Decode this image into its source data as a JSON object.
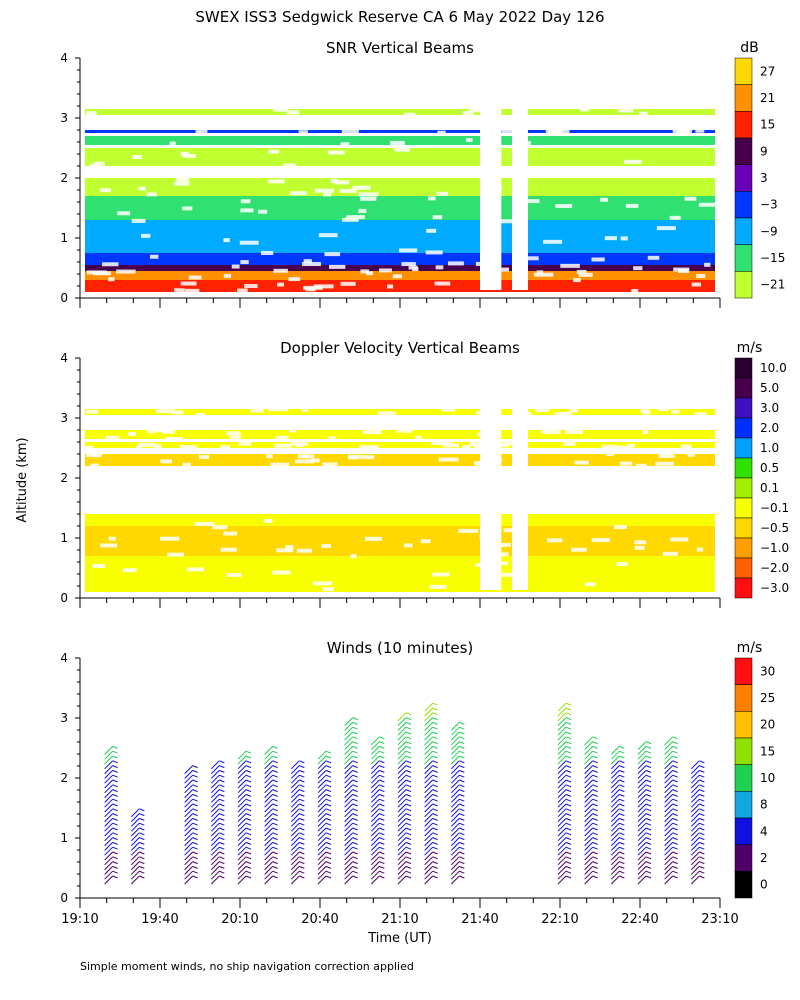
{
  "figure": {
    "title": "SWEX ISS3 Sedgwick Reserve CA   6 May 2022 Day 126",
    "ylabel": "Altitude (km)",
    "xlabel": "Time (UT)",
    "footnote": "Simple moment winds, no ship navigation correction applied",
    "x_ticks": [
      "19:10",
      "19:40",
      "20:10",
      "20:40",
      "21:10",
      "21:40",
      "22:10",
      "22:40",
      "23:10"
    ]
  },
  "chart_data": [
    {
      "type": "heatmap",
      "title": "SNR Vertical Beams",
      "colorbar_unit": "dB",
      "colorbar_labels": [
        "27",
        "21",
        "15",
        "9",
        "3",
        "−3",
        "−9",
        "−15",
        "−21"
      ],
      "colorbar_colors": [
        "#ffd800",
        "#ff9000",
        "#ff2200",
        "#48004c",
        "#6a00b8",
        "#0038ff",
        "#00aaff",
        "#30e070",
        "#c0ff30"
      ],
      "y_ticks": [
        "0",
        "1",
        "2",
        "3",
        "4"
      ],
      "ylim": [
        0,
        4
      ],
      "xlim": [
        "19:10",
        "23:10"
      ],
      "data_gaps": [
        [
          "21:40",
          "21:48"
        ],
        [
          "21:52",
          "21:58"
        ]
      ],
      "layers": [
        {
          "y0": 0.1,
          "y1": 0.3,
          "color": "#ff2200"
        },
        {
          "y0": 0.3,
          "y1": 0.45,
          "color": "#ff9000"
        },
        {
          "y0": 0.45,
          "y1": 0.55,
          "color": "#48004c"
        },
        {
          "y0": 0.55,
          "y1": 0.75,
          "color": "#0038ff"
        },
        {
          "y0": 0.75,
          "y1": 1.3,
          "color": "#00aaff"
        },
        {
          "y0": 1.3,
          "y1": 1.7,
          "color": "#30e070"
        },
        {
          "y0": 1.7,
          "y1": 2.0,
          "color": "#c0ff30"
        },
        {
          "y0": 2.2,
          "y1": 2.5,
          "color": "#c0ff30"
        },
        {
          "y0": 2.55,
          "y1": 2.7,
          "color": "#30e070"
        },
        {
          "y0": 2.75,
          "y1": 2.8,
          "color": "#0038ff"
        },
        {
          "y0": 3.05,
          "y1": 3.15,
          "color": "#c0ff30"
        }
      ]
    },
    {
      "type": "heatmap",
      "title": "Doppler Velocity Vertical Beams",
      "colorbar_unit": "m/s",
      "colorbar_labels": [
        "10.0",
        "5.0",
        "3.0",
        "2.0",
        "1.0",
        "0.5",
        "0.1",
        "−0.1",
        "−0.5",
        "−1.0",
        "−2.0",
        "−3.0"
      ],
      "colorbar_colors": [
        "#2a0030",
        "#48004c",
        "#4010c0",
        "#0030ff",
        "#00a0ff",
        "#30e000",
        "#a0f000",
        "#f8ff00",
        "#ffd800",
        "#ffa000",
        "#ff6000",
        "#ff1010"
      ],
      "y_ticks": [
        "0",
        "1",
        "2",
        "3",
        "4"
      ],
      "ylim": [
        0,
        4
      ],
      "xlim": [
        "19:10",
        "23:10"
      ],
      "data_gaps": [
        [
          "21:40",
          "21:48"
        ],
        [
          "21:52",
          "21:58"
        ]
      ],
      "layers": [
        {
          "y0": 0.1,
          "y1": 1.4,
          "color": "#f8ff00"
        },
        {
          "y0": 0.7,
          "y1": 1.2,
          "color": "#ffd800"
        },
        {
          "y0": 2.2,
          "y1": 2.4,
          "color": "#ffd800"
        },
        {
          "y0": 2.5,
          "y1": 2.6,
          "color": "#f8ff00"
        },
        {
          "y0": 2.65,
          "y1": 2.8,
          "color": "#f8ff00"
        },
        {
          "y0": 3.05,
          "y1": 3.15,
          "color": "#f8ff00"
        }
      ]
    },
    {
      "type": "scatter",
      "title": "Winds (10 minutes)",
      "colorbar_unit": "m/s",
      "colorbar_labels": [
        "30",
        "25",
        "20",
        "15",
        "10",
        "8",
        "4",
        "2",
        "0"
      ],
      "colorbar_colors": [
        "#ff1010",
        "#ff8000",
        "#ffc000",
        "#90e000",
        "#20d050",
        "#10a8e0",
        "#1010e0",
        "#50006a",
        "#000000"
      ],
      "y_ticks": [
        "0",
        "1",
        "2",
        "3",
        "4"
      ],
      "ylim": [
        0,
        4
      ],
      "xlim": [
        "19:10",
        "23:10"
      ],
      "profile_times": [
        "19:20",
        "19:30",
        "19:50",
        "20:00",
        "20:10",
        "20:20",
        "20:30",
        "20:40",
        "20:50",
        "21:00",
        "21:10",
        "21:20",
        "21:30",
        "22:10",
        "22:20",
        "22:30",
        "22:40",
        "22:50",
        "23:00"
      ],
      "profile_tops": [
        2.5,
        1.5,
        2.2,
        2.3,
        2.4,
        2.5,
        2.3,
        2.4,
        3.0,
        2.7,
        3.1,
        3.2,
        2.9,
        3.2,
        2.7,
        2.5,
        2.6,
        2.7,
        2.3
      ],
      "barb_speed_ms": 6
    }
  ]
}
